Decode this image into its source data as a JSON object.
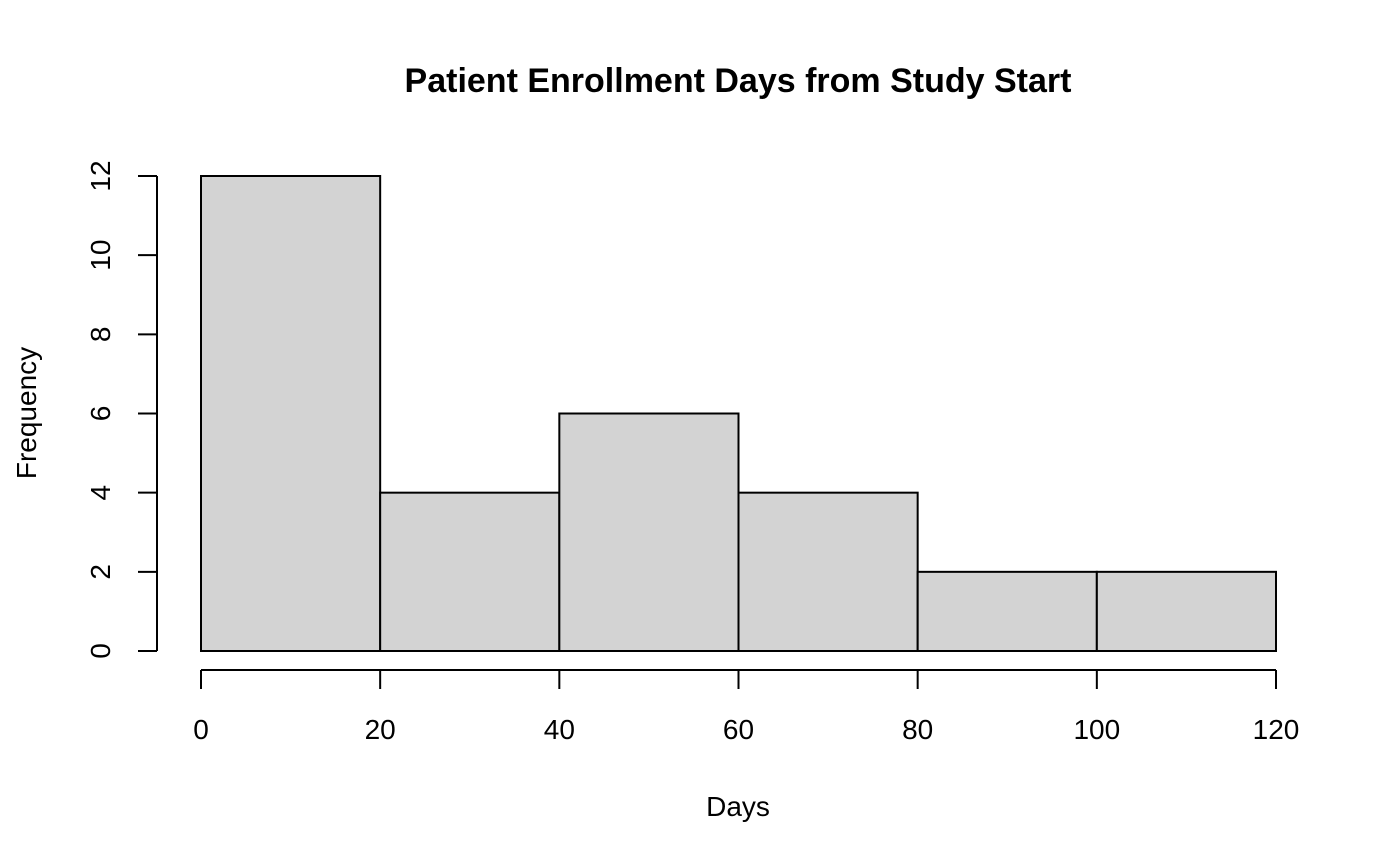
{
  "chart_data": {
    "type": "bar",
    "title": "Patient Enrollment Days from Study Start",
    "xlabel": "Days",
    "ylabel": "Frequency",
    "bins": [
      {
        "start": 0,
        "end": 20,
        "count": 12
      },
      {
        "start": 20,
        "end": 40,
        "count": 4
      },
      {
        "start": 40,
        "end": 60,
        "count": 6
      },
      {
        "start": 60,
        "end": 80,
        "count": 4
      },
      {
        "start": 80,
        "end": 100,
        "count": 2
      },
      {
        "start": 100,
        "end": 120,
        "count": 2
      }
    ],
    "xticks": [
      0,
      20,
      40,
      60,
      80,
      100,
      120
    ],
    "yticks": [
      0,
      2,
      4,
      6,
      8,
      10,
      12
    ],
    "xlim": [
      0,
      120
    ],
    "ylim": [
      0,
      12
    ],
    "bar_color": "#d3d3d3",
    "grid": false
  }
}
